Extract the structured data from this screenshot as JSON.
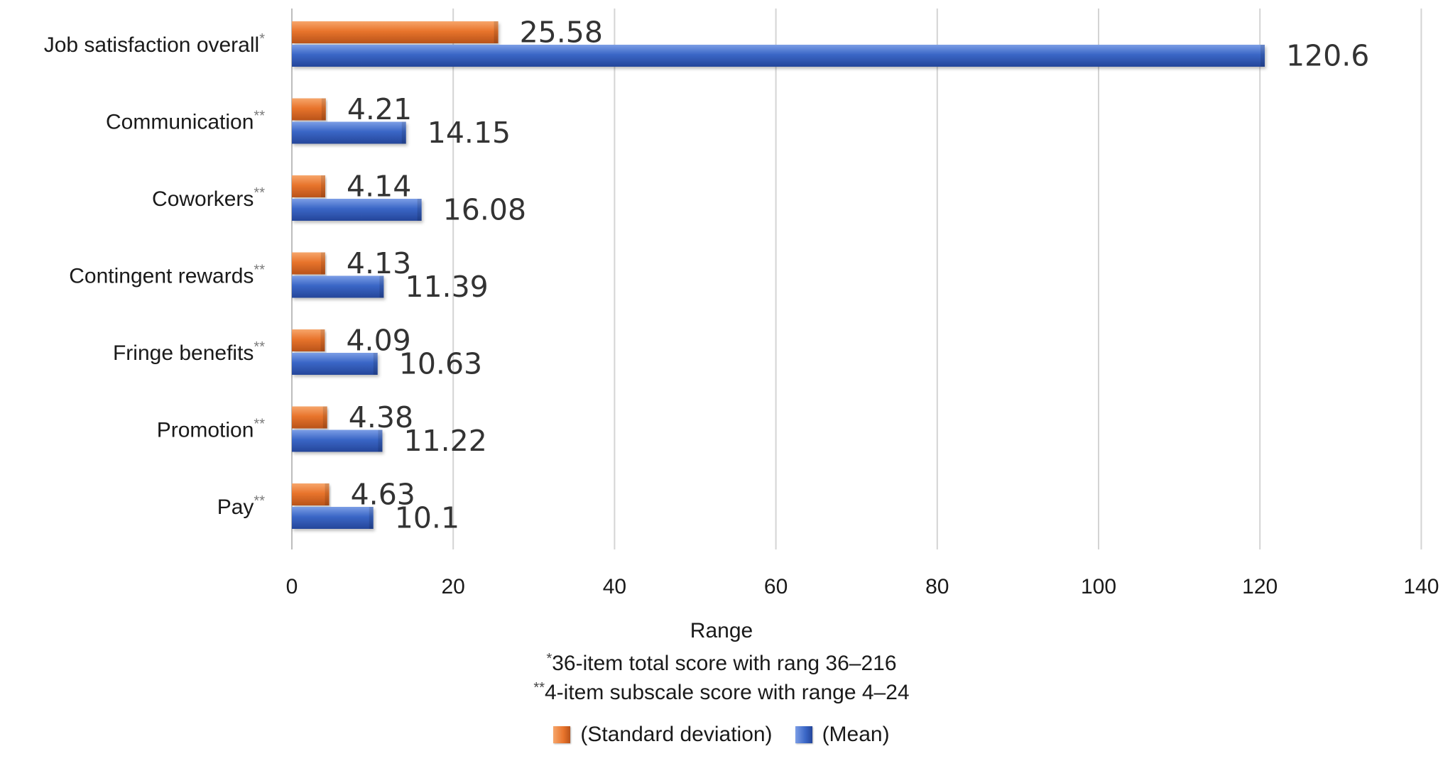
{
  "chart_data": {
    "type": "bar",
    "orientation": "horizontal",
    "categories": [
      {
        "label": "Job satisfaction overall",
        "mark": "*"
      },
      {
        "label": "Communication",
        "mark": "**"
      },
      {
        "label": "Coworkers",
        "mark": "**"
      },
      {
        "label": "Contingent rewards",
        "mark": "**"
      },
      {
        "label": "Fringe benefits",
        "mark": "**"
      },
      {
        "label": "Promotion",
        "mark": "**"
      },
      {
        "label": "Pay",
        "mark": "**"
      }
    ],
    "series": [
      {
        "name": "(Standard deviation)",
        "color": "#e8742c",
        "values": [
          25.58,
          4.21,
          4.14,
          4.13,
          4.09,
          4.38,
          4.63
        ],
        "labels": [
          "25.58",
          "4.21",
          "4.14",
          "4.13",
          "4.09",
          "4.38",
          "4.63"
        ]
      },
      {
        "name": "(Mean)",
        "color": "#3a66c6",
        "values": [
          120.6,
          14.15,
          16.08,
          11.39,
          10.63,
          11.22,
          10.1
        ],
        "labels": [
          "120.6",
          "14.15",
          "16.08",
          "11.39",
          "10.63",
          "11.22",
          "10.1"
        ]
      }
    ],
    "xlabel": "Range",
    "xlim": [
      0,
      140
    ],
    "xticks": [
      0,
      20,
      40,
      60,
      80,
      100,
      120,
      140
    ],
    "grid": "vertical",
    "legend_position": "bottom",
    "notes": [
      {
        "mark": "*",
        "text": "36-item total score with rang 36–216"
      },
      {
        "mark": "**",
        "text": "4-item subscale score with range 4–24"
      }
    ]
  }
}
